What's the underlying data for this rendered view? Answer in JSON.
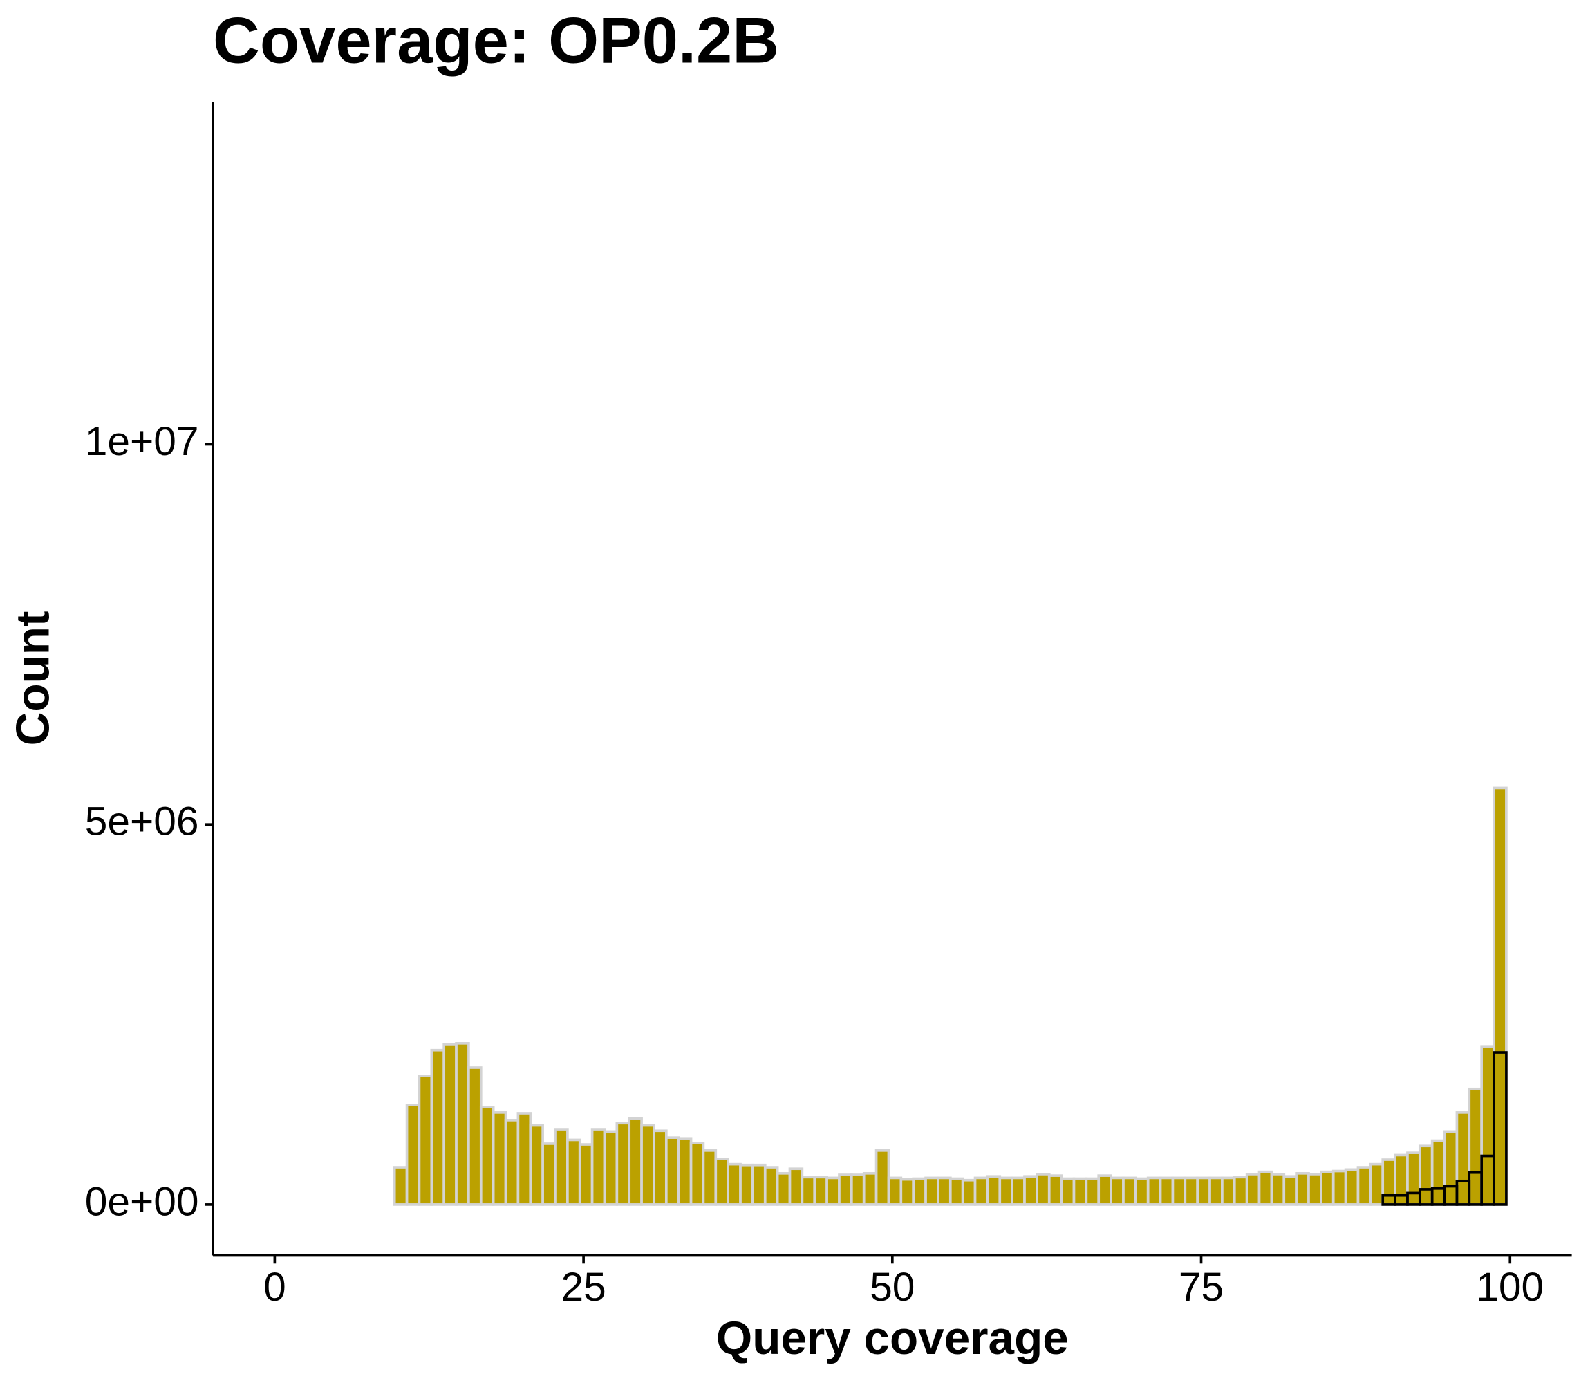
{
  "chart_data": {
    "type": "histogram",
    "title": "Coverage: OP0.2B",
    "x_label": "Query coverage",
    "y_label": "Count",
    "bins": [
      0.7,
      1.7,
      2.7,
      3.7,
      4.7,
      5.7,
      6.7,
      7.7,
      8.7,
      9.7,
      10.7,
      11.7,
      12.7,
      13.7,
      14.7,
      15.7,
      16.7,
      17.7,
      18.7,
      19.7,
      20.7,
      21.7,
      22.7,
      23.7,
      24.7,
      25.7,
      26.7,
      27.7,
      28.7,
      29.7,
      30.7,
      31.7,
      32.7,
      33.7,
      34.7,
      35.7,
      36.7,
      37.7,
      38.7,
      39.7,
      40.7,
      41.7,
      42.7,
      43.7,
      44.7,
      45.7,
      46.7,
      47.7,
      48.7,
      49.7,
      50.7,
      51.7,
      52.7,
      53.7,
      54.7,
      55.7,
      56.7,
      57.7,
      58.7,
      59.7,
      60.7,
      61.7,
      62.7,
      63.7,
      64.7,
      65.7,
      66.7,
      67.7,
      68.7,
      69.7,
      70.7,
      71.7,
      72.7,
      73.7,
      74.7,
      75.7,
      76.7,
      77.7,
      78.7,
      79.7,
      80.7,
      81.7,
      82.7,
      83.7,
      84.7,
      85.7,
      86.7,
      87.7,
      88.7,
      89.7,
      90.7,
      91.7,
      92.7,
      93.7,
      94.7,
      95.7,
      96.7,
      97.7,
      98.7,
      99.7
    ],
    "series": [
      {
        "color": "#bba100",
        "edgecolor": "#d3d3d3",
        "values": [
          0,
          0,
          0,
          0,
          0,
          0,
          0,
          0,
          0,
          490000,
          1310000,
          1690000,
          2030000,
          2110000,
          2120000,
          1800000,
          1280000,
          1210000,
          1110000,
          1200000,
          1040000,
          800000,
          990000,
          850000,
          790000,
          990000,
          960000,
          1070000,
          1130000,
          1040000,
          970000,
          880000,
          870000,
          810000,
          710000,
          600000,
          530000,
          520000,
          520000,
          490000,
          410000,
          470000,
          360000,
          360000,
          350000,
          390000,
          390000,
          410000,
          710000,
          350000,
          330000,
          340000,
          350000,
          350000,
          340000,
          320000,
          350000,
          370000,
          350000,
          350000,
          370000,
          400000,
          380000,
          340000,
          340000,
          340000,
          380000,
          350000,
          350000,
          340000,
          350000,
          350000,
          350000,
          350000,
          350000,
          350000,
          350000,
          360000,
          400000,
          430000,
          400000,
          370000,
          410000,
          400000,
          430000,
          440000,
          460000,
          490000,
          530000,
          590000,
          650000,
          680000,
          770000,
          840000,
          960000,
          1210000,
          1520000,
          2080000,
          5480000
        ]
      },
      {
        "color": "none",
        "edgecolor": "#000000",
        "values": [
          0,
          0,
          0,
          0,
          0,
          0,
          0,
          0,
          0,
          0,
          0,
          0,
          0,
          0,
          0,
          0,
          0,
          0,
          0,
          0,
          0,
          0,
          0,
          0,
          0,
          0,
          0,
          0,
          0,
          0,
          0,
          0,
          0,
          0,
          0,
          0,
          0,
          0,
          0,
          0,
          0,
          0,
          0,
          0,
          0,
          0,
          0,
          0,
          0,
          0,
          0,
          0,
          0,
          0,
          0,
          0,
          0,
          0,
          0,
          0,
          0,
          0,
          0,
          0,
          0,
          0,
          0,
          0,
          0,
          0,
          0,
          0,
          0,
          0,
          0,
          0,
          0,
          0,
          0,
          0,
          0,
          0,
          0,
          0,
          0,
          0,
          0,
          0,
          0,
          120000,
          120000,
          150000,
          200000,
          210000,
          240000,
          310000,
          420000,
          640000,
          2000000
        ]
      }
    ],
    "xlim": [
      -5,
      105
    ],
    "xticks": [
      0,
      25,
      50,
      75,
      100
    ],
    "ylim": [
      -670000,
      14500000
    ],
    "yticks": [
      {
        "value": 0,
        "label": "0e+00"
      },
      {
        "value": 5000000,
        "label": "5e+06"
      },
      {
        "value": 10000000,
        "label": "1e+07"
      }
    ]
  }
}
